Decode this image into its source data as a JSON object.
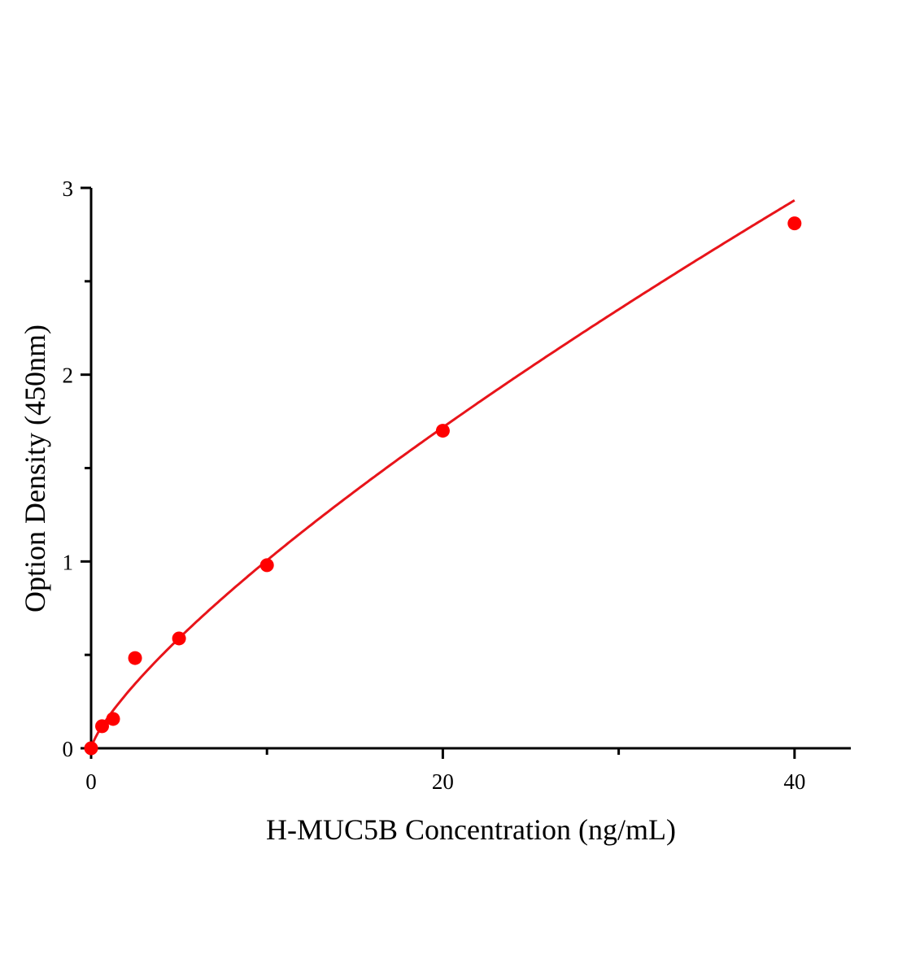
{
  "chart_data": {
    "type": "scatter",
    "title": "",
    "xlabel": "H-MUC5B Concentration (ng/mL)",
    "ylabel": "Option Density (450nm)",
    "xlim": [
      0,
      43.2
    ],
    "ylim": [
      0,
      3
    ],
    "x_ticks": [
      0,
      20,
      40
    ],
    "x_tick_labels": [
      "0",
      "20",
      "40"
    ],
    "x_minor_ticks": [
      10,
      30
    ],
    "y_ticks": [
      0,
      1,
      2,
      3
    ],
    "y_tick_labels": [
      "0",
      "1",
      "2",
      "3"
    ],
    "y_minor_ticks": [
      0.5,
      1.5,
      2.5
    ],
    "grid": false,
    "series": [
      {
        "x": [
          0,
          0.625,
          1.25,
          2.5,
          5,
          10,
          20,
          40
        ],
        "y": [
          0,
          0.118,
          0.157,
          0.483,
          0.588,
          0.98,
          1.7,
          2.81
        ],
        "color": "#ff0000"
      }
    ],
    "fit_curve": {
      "type": "power",
      "color": "#e8141a"
    }
  }
}
